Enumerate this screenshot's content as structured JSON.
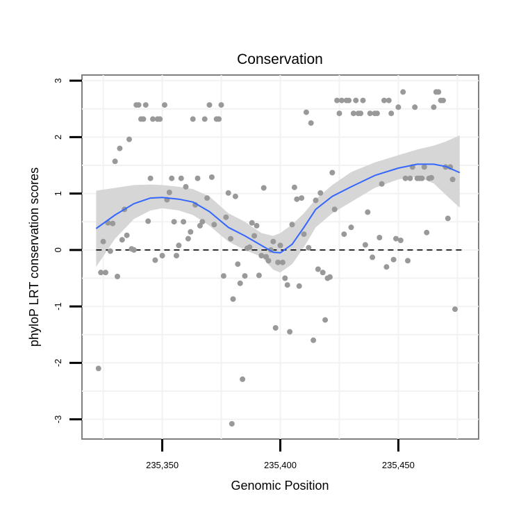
{
  "chart_data": {
    "type": "scatter",
    "title": "Conservation",
    "xlabel": "Genomic Position",
    "ylabel": "phyloP LRT conservation scores",
    "xlim": [
      235316,
      235484
    ],
    "ylim": [
      -3.35,
      3.1
    ],
    "x_ticks": [
      {
        "value": 235350,
        "label": "235,350"
      },
      {
        "value": 235400,
        "label": "235,400"
      },
      {
        "value": 235450,
        "label": "235,450"
      }
    ],
    "y_ticks": [
      {
        "value": 3,
        "label": "3"
      },
      {
        "value": 2,
        "label": "2"
      },
      {
        "value": 1,
        "label": "1"
      },
      {
        "value": 0,
        "label": "0"
      },
      {
        "value": -1,
        "label": "-1"
      },
      {
        "value": -2,
        "label": "-2"
      },
      {
        "value": -3,
        "label": "-3"
      }
    ],
    "reference_line": {
      "y": 0,
      "style": "dashed"
    },
    "colors": {
      "points": "#999999",
      "smooth": "#3366ff",
      "band": "#d6d6d6",
      "reference": "#000000",
      "frame": "#7f7f7f",
      "grid": "#f2f2f2"
    },
    "points": [
      [
        235323,
        -2.1
      ],
      [
        235324,
        -0.4
      ],
      [
        235325,
        0.15
      ],
      [
        235326,
        -0.4
      ],
      [
        235327,
        0.48
      ],
      [
        235328,
        -0.02
      ],
      [
        235329,
        0.47
      ],
      [
        235330,
        1.57
      ],
      [
        235331,
        -0.47
      ],
      [
        235332,
        1.8
      ],
      [
        235333,
        0.18
      ],
      [
        235334,
        0.72
      ],
      [
        235335,
        0.26
      ],
      [
        235336,
        1.96
      ],
      [
        235337,
        0.02
      ],
      [
        235338,
        0.0
      ],
      [
        235339,
        2.57
      ],
      [
        235340,
        2.57
      ],
      [
        235341,
        2.32
      ],
      [
        235342,
        2.32
      ],
      [
        235343,
        2.57
      ],
      [
        235344,
        0.51
      ],
      [
        235345,
        1.27
      ],
      [
        235346,
        2.32
      ],
      [
        235347,
        -0.18
      ],
      [
        235348,
        2.32
      ],
      [
        235349,
        2.32
      ],
      [
        235350,
        -0.1
      ],
      [
        235351,
        2.57
      ],
      [
        235352,
        0.89
      ],
      [
        235353,
        1.02
      ],
      [
        235354,
        1.27
      ],
      [
        235355,
        0.5
      ],
      [
        235356,
        -0.1
      ],
      [
        235357,
        0.08
      ],
      [
        235358,
        1.27
      ],
      [
        235359,
        0.5
      ],
      [
        235360,
        1.12
      ],
      [
        235361,
        0.2
      ],
      [
        235362,
        0.32
      ],
      [
        235363,
        2.32
      ],
      [
        235364,
        0.8
      ],
      [
        235365,
        1.27
      ],
      [
        235366,
        0.43
      ],
      [
        235367,
        0.5
      ],
      [
        235368,
        2.32
      ],
      [
        235369,
        0.92
      ],
      [
        235370,
        2.57
      ],
      [
        235371,
        1.29
      ],
      [
        235372,
        0.45
      ],
      [
        235373,
        2.32
      ],
      [
        235374,
        2.32
      ],
      [
        235375,
        2.57
      ],
      [
        235376,
        -0.46
      ],
      [
        235377,
        0.58
      ],
      [
        235378,
        1.01
      ],
      [
        235379,
        0.2
      ],
      [
        235379.5,
        -3.08
      ],
      [
        235380,
        -0.87
      ],
      [
        235381,
        0.95
      ],
      [
        235382,
        -0.25
      ],
      [
        235383,
        -0.59
      ],
      [
        235384,
        -2.29
      ],
      [
        235385,
        -0.46
      ],
      [
        235386,
        0.03
      ],
      [
        235387,
        0.05
      ],
      [
        235388,
        0.48
      ],
      [
        235389,
        0.25
      ],
      [
        235390,
        0.43
      ],
      [
        235391,
        -0.45
      ],
      [
        235392,
        -0.1
      ],
      [
        235393,
        1.1
      ],
      [
        235394,
        -0.12
      ],
      [
        235395,
        -0.19
      ],
      [
        235396,
        0.0
      ],
      [
        235397,
        0.15
      ],
      [
        235398,
        -1.38
      ],
      [
        235399,
        -0.22
      ],
      [
        235400,
        0.08
      ],
      [
        235401,
        -0.22
      ],
      [
        235402,
        -0.5
      ],
      [
        235403,
        -0.62
      ],
      [
        235404,
        -1.45
      ],
      [
        235405,
        0.45
      ],
      [
        235406,
        1.11
      ],
      [
        235407,
        0.9
      ],
      [
        235408,
        -0.64
      ],
      [
        235409,
        0.92
      ],
      [
        235410,
        0.28
      ],
      [
        235411,
        2.44
      ],
      [
        235412,
        0.04
      ],
      [
        235413,
        2.25
      ],
      [
        235414,
        -1.6
      ],
      [
        235415,
        0.88
      ],
      [
        235416,
        -0.34
      ],
      [
        235417,
        1.01
      ],
      [
        235418,
        -0.4
      ],
      [
        235419,
        -1.24
      ],
      [
        235420,
        -0.5
      ],
      [
        235421,
        -0.48
      ],
      [
        235422,
        1.37
      ],
      [
        235423,
        0.72
      ],
      [
        235424,
        2.65
      ],
      [
        235425,
        2.42
      ],
      [
        235426,
        2.65
      ],
      [
        235427,
        0.28
      ],
      [
        235428,
        2.65
      ],
      [
        235429,
        2.65
      ],
      [
        235430,
        0.4
      ],
      [
        235431,
        2.42
      ],
      [
        235432,
        2.65
      ],
      [
        235433,
        2.42
      ],
      [
        235434,
        2.42
      ],
      [
        235435,
        2.65
      ],
      [
        235436,
        0.09
      ],
      [
        235437,
        0.67
      ],
      [
        235438,
        2.42
      ],
      [
        235439,
        -0.13
      ],
      [
        235440,
        2.42
      ],
      [
        235441,
        2.42
      ],
      [
        235442,
        0.22
      ],
      [
        235443,
        1.17
      ],
      [
        235444,
        2.65
      ],
      [
        235445,
        -0.3
      ],
      [
        235446,
        2.65
      ],
      [
        235447,
        2.42
      ],
      [
        235448,
        -0.17
      ],
      [
        235449,
        0.2
      ],
      [
        235450,
        2.53
      ],
      [
        235451,
        0.17
      ],
      [
        235452,
        2.8
      ],
      [
        235453,
        1.27
      ],
      [
        235454,
        -0.19
      ],
      [
        235455,
        1.27
      ],
      [
        235456,
        1.47
      ],
      [
        235457,
        2.53
      ],
      [
        235458,
        1.27
      ],
      [
        235459,
        1.27
      ],
      [
        235460,
        1.27
      ],
      [
        235461,
        1.47
      ],
      [
        235462,
        0.31
      ],
      [
        235463,
        1.27
      ],
      [
        235464,
        1.28
      ],
      [
        235465,
        2.53
      ],
      [
        235466,
        2.8
      ],
      [
        235467,
        2.8
      ],
      [
        235468,
        2.65
      ],
      [
        235469,
        2.65
      ],
      [
        235470,
        1.47
      ],
      [
        235471,
        0.56
      ],
      [
        235472,
        1.47
      ],
      [
        235473,
        1.25
      ],
      [
        235474,
        -1.05
      ]
    ],
    "smooth": {
      "x": [
        235322,
        235330,
        235338,
        235345,
        235350,
        235357,
        235363,
        235370,
        235378,
        235385,
        235392,
        235397,
        235400,
        235405,
        235410,
        235415,
        235422,
        235430,
        235440,
        235450,
        235458,
        235465,
        235470,
        235476
      ],
      "y": [
        0.38,
        0.62,
        0.82,
        0.92,
        0.93,
        0.9,
        0.85,
        0.68,
        0.4,
        0.25,
        0.08,
        -0.04,
        -0.05,
        0.1,
        0.4,
        0.72,
        0.95,
        1.12,
        1.32,
        1.45,
        1.52,
        1.52,
        1.48,
        1.37
      ],
      "lower": [
        -0.3,
        0.2,
        0.55,
        0.7,
        0.74,
        0.7,
        0.62,
        0.43,
        0.15,
        0.0,
        -0.12,
        -0.35,
        -0.4,
        -0.25,
        0.05,
        0.4,
        0.65,
        0.85,
        1.1,
        1.25,
        1.3,
        1.18,
        0.98,
        0.75
      ],
      "upper": [
        1.05,
        1.1,
        1.15,
        1.16,
        1.15,
        1.12,
        1.08,
        0.95,
        0.65,
        0.5,
        0.3,
        0.25,
        0.3,
        0.45,
        0.65,
        0.9,
        1.15,
        1.38,
        1.55,
        1.68,
        1.78,
        1.85,
        1.92,
        2.03
      ]
    }
  }
}
